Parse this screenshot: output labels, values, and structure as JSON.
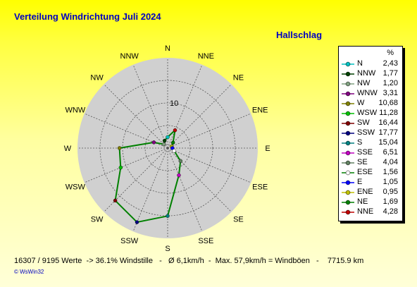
{
  "title": "Verteilung Windrichtung    Juli 2024",
  "location": "Hallschlag",
  "footer": "16307 / 9195 Werte  -> 36.1% Windstille   -   Ø 6,1km/h  -  Max. 57,9km/h = Windböen   -    7715.9 km",
  "credit": "© WsWin32",
  "chart_data": {
    "type": "radar",
    "unit": "%",
    "ring_label": "10",
    "ring_step": 5,
    "r_max": 20,
    "directions": [
      "N",
      "NNE",
      "NE",
      "ENE",
      "E",
      "ESE",
      "SE",
      "SSE",
      "S",
      "SSW",
      "SW",
      "WSW",
      "W",
      "WNW",
      "NW",
      "NNW"
    ],
    "values": [
      2.43,
      4.28,
      1.69,
      0.95,
      1.05,
      1.56,
      4.04,
      6.51,
      15.04,
      17.77,
      16.44,
      11.28,
      10.68,
      3.31,
      1.2,
      1.77
    ],
    "line_color": "#008000",
    "fill_color": "#d0d0d0"
  },
  "legend": {
    "unit": "%",
    "items": [
      {
        "name": "N",
        "value": "2,43",
        "color": "#00c0c0"
      },
      {
        "name": "NNW",
        "value": "1,77",
        "color": "#004000"
      },
      {
        "name": "NW",
        "value": "1,20",
        "color": "#80a080"
      },
      {
        "name": "WNW",
        "value": "3,31",
        "color": "#800080"
      },
      {
        "name": "W",
        "value": "10,68",
        "color": "#808000"
      },
      {
        "name": "WSW",
        "value": "11,28",
        "color": "#00c000"
      },
      {
        "name": "SW",
        "value": "16,44",
        "color": "#800000"
      },
      {
        "name": "SSW",
        "value": "17,77",
        "color": "#000080"
      },
      {
        "name": "S",
        "value": "15,04",
        "color": "#008080"
      },
      {
        "name": "SSE",
        "value": "6,51",
        "color": "#c000c0"
      },
      {
        "name": "SE",
        "value": "4,04",
        "color": "#608060"
      },
      {
        "name": "ESE",
        "value": "1,56",
        "color": "#ffffff"
      },
      {
        "name": "E",
        "value": "1,05",
        "color": "#0000ff"
      },
      {
        "name": "ENE",
        "value": "0,95",
        "color": "#c0c000"
      },
      {
        "name": "NE",
        "value": "1,69",
        "color": "#008000"
      },
      {
        "name": "NNE",
        "value": "4,28",
        "color": "#c00000"
      }
    ]
  }
}
